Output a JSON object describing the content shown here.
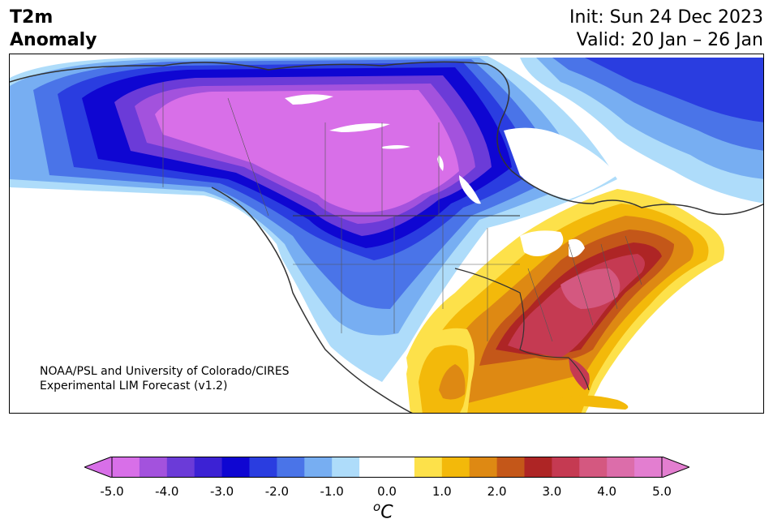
{
  "title": {
    "variable": "T2m",
    "type": "Anomaly",
    "init": "Init: Sun 24 Dec 2023",
    "valid": "Valid: 20 Jan – 26 Jan"
  },
  "credit": {
    "line1": "NOAA/PSL and University of Colorado/CIRES",
    "line2": "Experimental LIM Forecast (v1.2)"
  },
  "colorbar": {
    "unit_base": "C",
    "unit_sup": "o",
    "ticks": [
      "-5.0",
      "-4.0",
      "-3.0",
      "-2.0",
      "-1.0",
      "0.0",
      "1.0",
      "2.0",
      "3.0",
      "4.0",
      "5.0"
    ],
    "colors": [
      "#d86fe8",
      "#a352dd",
      "#6b3bd8",
      "#3c22d4",
      "#0f06d2",
      "#2a3de0",
      "#4a74e8",
      "#77aef2",
      "#aedcfa",
      "#ffffff",
      "#ffffff",
      "#fde14a",
      "#f3b90a",
      "#de8913",
      "#c45719",
      "#ae2525",
      "#c53a52",
      "#d45880",
      "#dc6daa",
      "#e37ed0"
    ],
    "below_color": "#d86fe8",
    "above_color": "#e37ed0"
  },
  "map": {
    "region": "North America",
    "cold_anomaly": "Canada and northern/western US",
    "warm_anomaly": "Eastern US and Gulf Coast"
  }
}
